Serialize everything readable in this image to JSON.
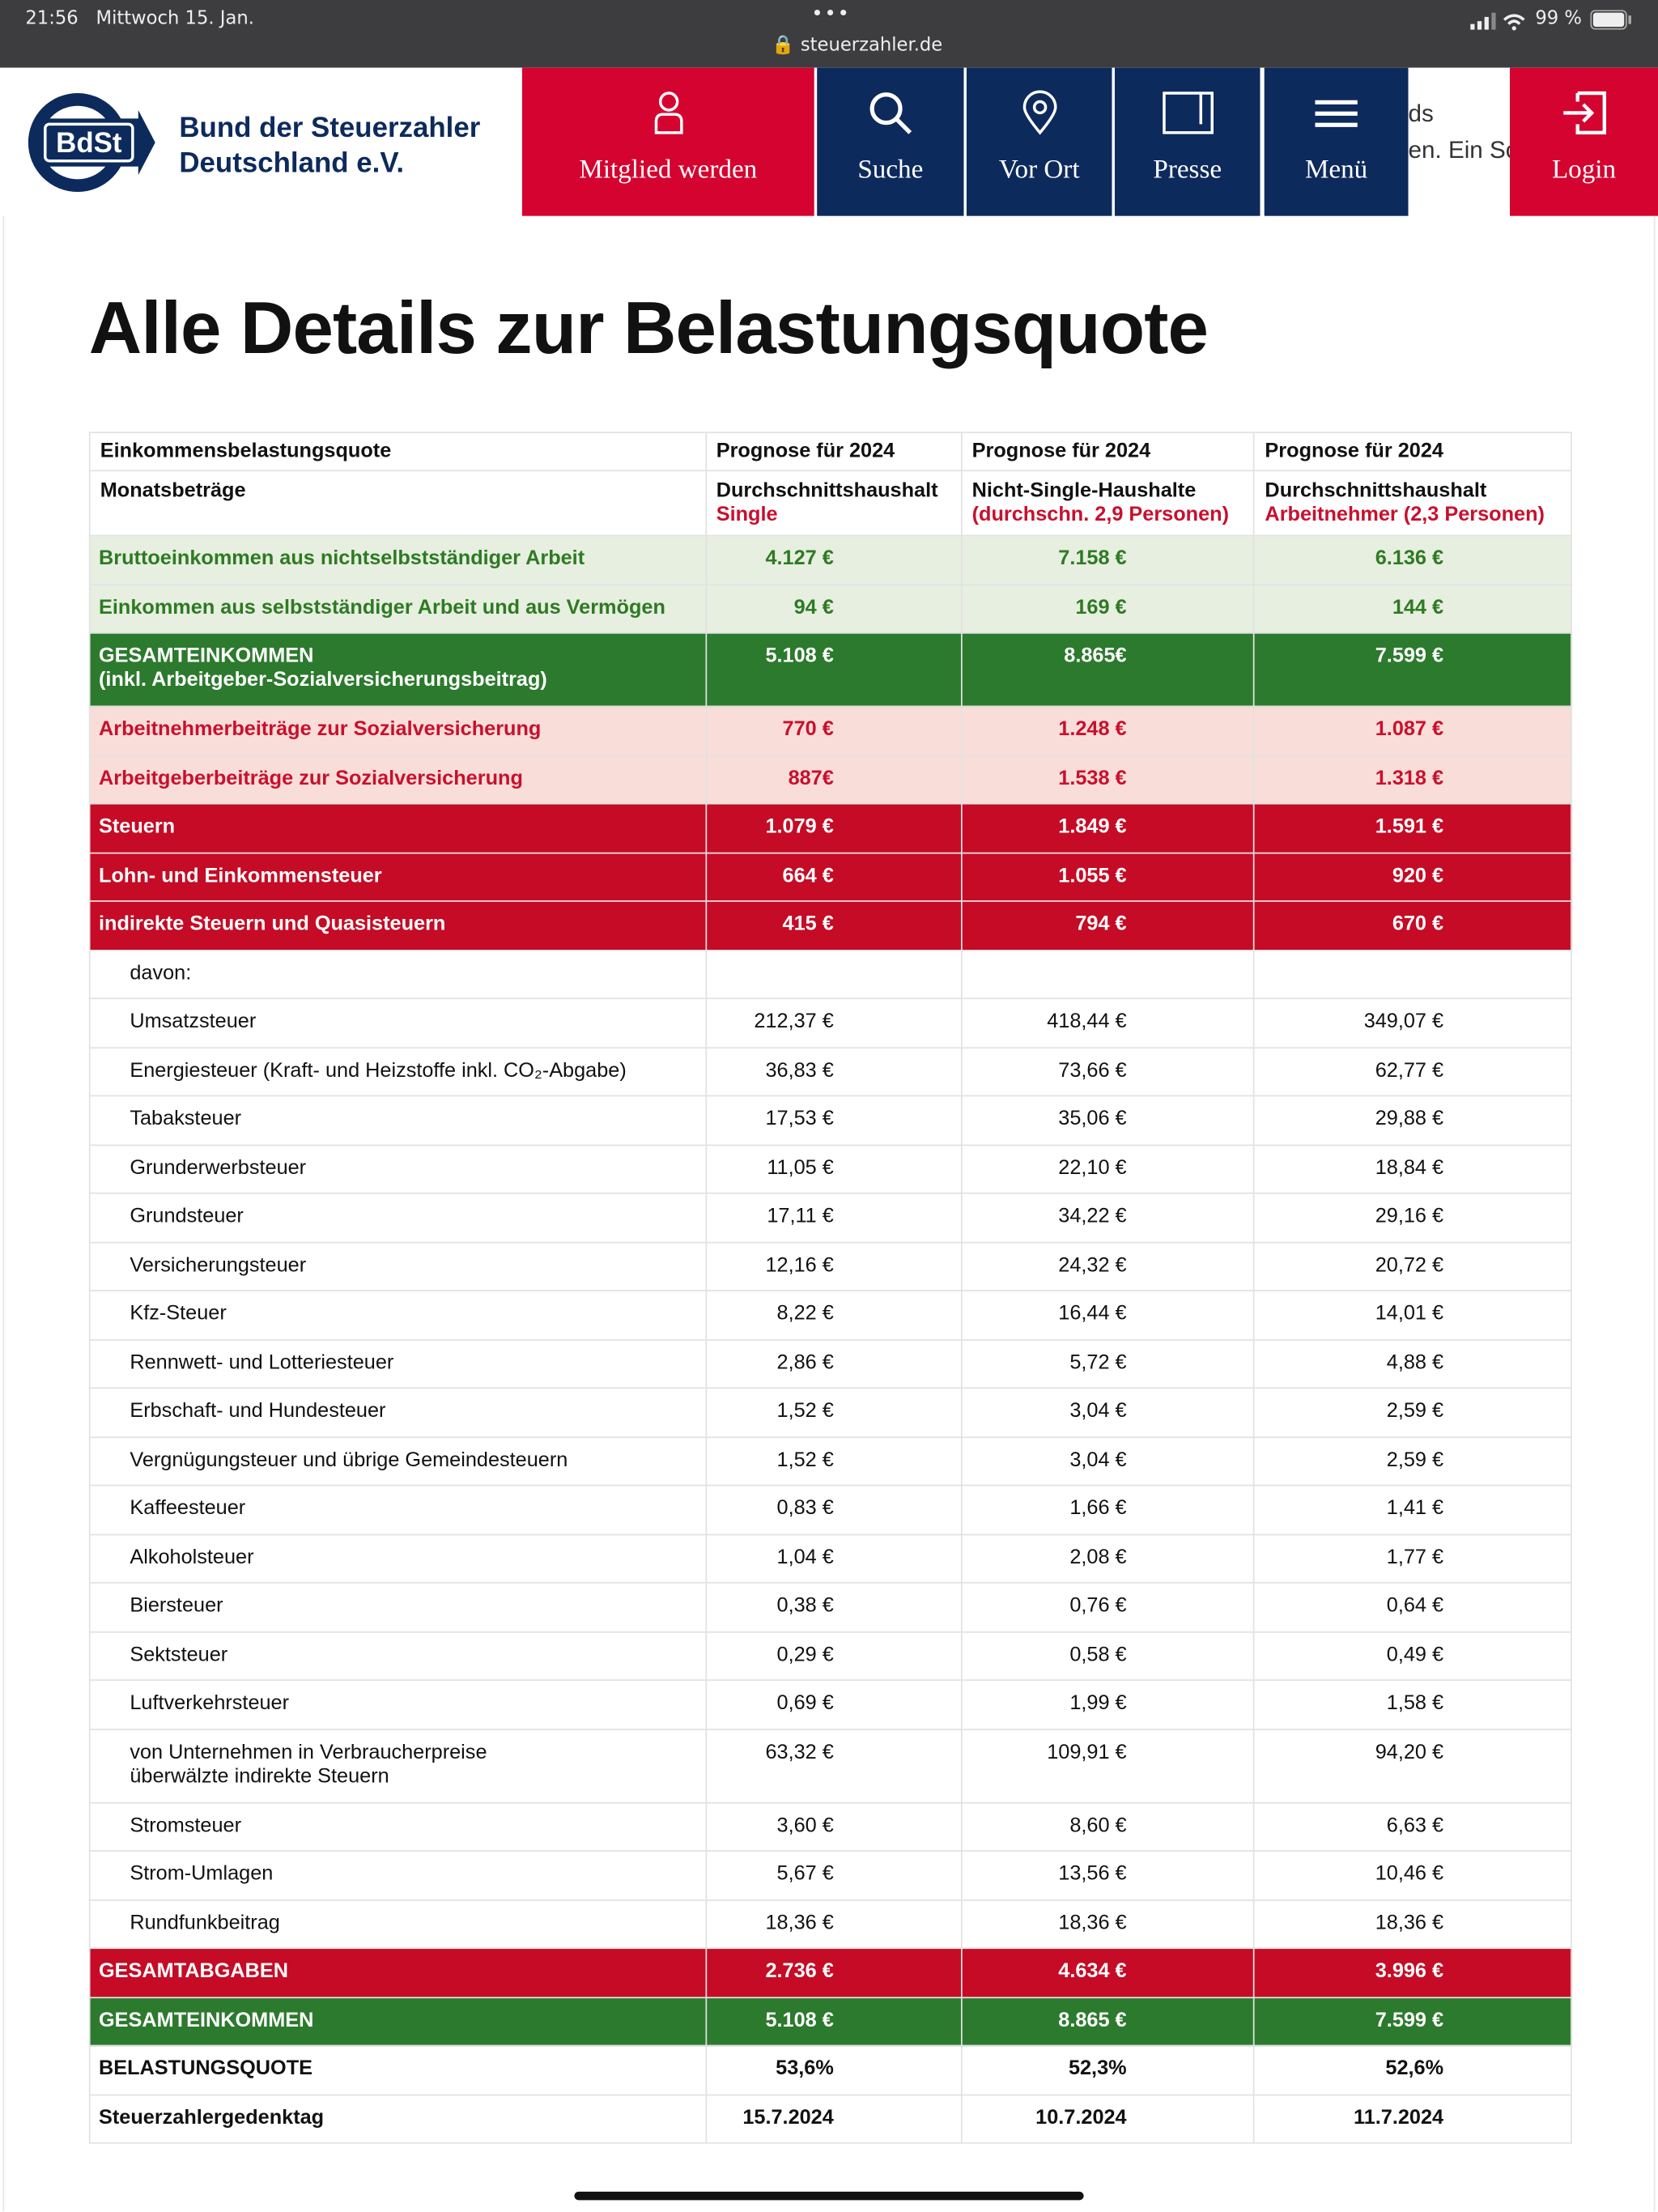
{
  "status": {
    "time": "21:56",
    "date": "Mittwoch 15. Jan.",
    "url": "steuerzahler.de",
    "battery": "99 %"
  },
  "header": {
    "logo": "BdSt",
    "org": [
      "Bund der Steuerzahler",
      "Deutschland e.V."
    ],
    "nav": [
      "Mitglied werden",
      "Suche",
      "Vor Ort",
      "Presse",
      "Menü"
    ],
    "behind": [
      "ds",
      "en. Ein Sc"
    ],
    "login": "Login"
  },
  "title": "Alle Details zur Belastungsquote",
  "table": {
    "head": [
      [
        "Einkommensbelastungsquote",
        "Prognose für 2024",
        "Prognose für 2024",
        "Prognose für 2024"
      ],
      [
        "Monatsbeträge",
        [
          "Durchschnittshaushalt",
          "Single"
        ],
        [
          "Nicht-Single-Haushalte",
          "(durchschn. 2,9 Personen)"
        ],
        [
          "Durchschnittshaushalt",
          "Arbeitnehmer (2,3 Personen)"
        ]
      ]
    ],
    "rows": [
      {
        "style": "lightgreen",
        "cells": [
          "Bruttoeinkommen aus nichtselbstständiger Arbeit",
          "4.127 €",
          "7.158 €",
          "6.136 €"
        ]
      },
      {
        "style": "lightgreen",
        "cells": [
          "Einkommen aus selbstständiger Arbeit und aus Vermögen",
          "94 €",
          "169 €",
          "144 €"
        ]
      },
      {
        "style": "green",
        "cells": [
          "GESAMTEINKOMMEN\n(inkl. Arbeitgeber-Sozialversicherungsbeitrag)",
          "5.108 €",
          "8.865€",
          "7.599 €"
        ]
      },
      {
        "style": "lightred",
        "cells": [
          "Arbeitnehmerbeiträge zur Sozialversicherung",
          "770 €",
          "1.248 €",
          "1.087 €"
        ]
      },
      {
        "style": "lightred",
        "cells": [
          "Arbeitgeberbeiträge zur Sozialversicherung",
          "887€",
          "1.538 €",
          "1.318 €"
        ]
      },
      {
        "style": "red",
        "cells": [
          "Steuern",
          "1.079 €",
          "1.849 €",
          "1.591 €"
        ]
      },
      {
        "style": "red",
        "cells": [
          "Lohn- und Einkommensteuer",
          "664 €",
          "1.055 €",
          "920 €"
        ]
      },
      {
        "style": "red",
        "cells": [
          "indirekte Steuern und Quasisteuern",
          "415 €",
          "794 €",
          "670 €"
        ]
      },
      {
        "style": "plain",
        "cells": [
          "davon:"
        ]
      },
      {
        "style": "plain",
        "cells": [
          "Umsatzsteuer",
          "212,37 €",
          "418,44 €",
          "349,07 €"
        ]
      },
      {
        "style": "plain",
        "cells": [
          "Energiesteuer (Kraft- und Heizstoffe inkl. CO₂-Abgabe)",
          "36,83 €",
          "73,66 €",
          "62,77 €"
        ]
      },
      {
        "style": "plain",
        "cells": [
          "Tabaksteuer",
          "17,53 €",
          "35,06 €",
          "29,88 €"
        ]
      },
      {
        "style": "plain",
        "cells": [
          "Grunderwerbsteuer",
          "11,05 €",
          "22,10 €",
          "18,84 €"
        ]
      },
      {
        "style": "plain",
        "cells": [
          "Grundsteuer",
          "17,11 €",
          "34,22 €",
          "29,16 €"
        ]
      },
      {
        "style": "plain",
        "cells": [
          "Versicherungsteuer",
          "12,16 €",
          "24,32 €",
          "20,72 €"
        ]
      },
      {
        "style": "plain",
        "cells": [
          "Kfz-Steuer",
          "8,22 €",
          "16,44 €",
          "14,01 €"
        ]
      },
      {
        "style": "plain",
        "cells": [
          "Rennwett- und Lotteriesteuer",
          "2,86 €",
          "5,72 €",
          "4,88 €"
        ]
      },
      {
        "style": "plain",
        "cells": [
          "Erbschaft- und Hundesteuer",
          "1,52 €",
          "3,04 €",
          "2,59 €"
        ]
      },
      {
        "style": "plain",
        "cells": [
          "Vergnügungsteuer und übrige Gemeindesteuern",
          "1,52 €",
          "3,04 €",
          "2,59 €"
        ]
      },
      {
        "style": "plain",
        "cells": [
          "Kaffeesteuer",
          "0,83 €",
          "1,66 €",
          "1,41 €"
        ]
      },
      {
        "style": "plain",
        "cells": [
          "Alkoholsteuer",
          "1,04 €",
          "2,08 €",
          "1,77 €"
        ]
      },
      {
        "style": "plain",
        "cells": [
          "Biersteuer",
          "0,38 €",
          "0,76 €",
          "0,64 €"
        ]
      },
      {
        "style": "plain",
        "cells": [
          "Sektsteuer",
          "0,29 €",
          "0,58 €",
          "0,49 €"
        ]
      },
      {
        "style": "plain",
        "cells": [
          "Luftverkehrsteuer",
          "0,69 €",
          "1,99 €",
          "1,58 €"
        ]
      },
      {
        "style": "plain",
        "cells": [
          "von Unternehmen in Verbraucherpreise\nüberwälzte indirekte Steuern",
          "63,32 €",
          "109,91 €",
          "94,20 €"
        ]
      },
      {
        "style": "plain",
        "cells": [
          "Stromsteuer",
          "3,60 €",
          "8,60 €",
          "6,63 €"
        ]
      },
      {
        "style": "plain",
        "cells": [
          "Strom-Umlagen",
          "5,67 €",
          "13,56 €",
          "10,46 €"
        ]
      },
      {
        "style": "plain",
        "cells": [
          "Rundfunkbeitrag",
          "18,36 €",
          "18,36 €",
          "18,36 €"
        ]
      },
      {
        "style": "red",
        "cells": [
          "GESAMTABGABEN",
          "2.736 €",
          "4.634 €",
          "3.996 €"
        ]
      },
      {
        "style": "green",
        "cells": [
          "GESAMTEINKOMMEN",
          "5.108 €",
          "8.865 €",
          "7.599 €"
        ]
      },
      {
        "style": "bold",
        "cells": [
          "BELASTUNGSQUOTE",
          "53,6%",
          "52,3%",
          "52,6%"
        ]
      },
      {
        "style": "bold",
        "cells": [
          "Steuerzahlergedenktag",
          "15.7.2024",
          "10.7.2024",
          "11.7.2024"
        ]
      }
    ]
  }
}
